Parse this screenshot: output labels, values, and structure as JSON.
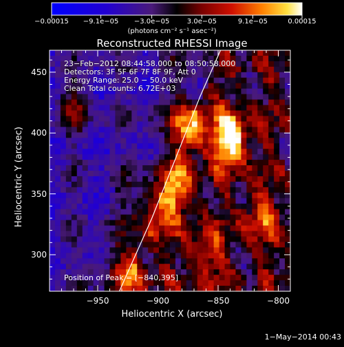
{
  "chart_data": {
    "type": "heatmap",
    "title": "Reconstructed RHESSI Image",
    "xlabel": "Heliocentric X (arcsec)",
    "ylabel": "Heliocentric Y (arcsec)",
    "xlim": [
      -990,
      -790
    ],
    "ylim": [
      270,
      468
    ],
    "xticks": [
      {
        "v": -950,
        "label": "−950"
      },
      {
        "v": -900,
        "label": "−900"
      },
      {
        "v": -850,
        "label": "−850"
      },
      {
        "v": -800,
        "label": "−800"
      }
    ],
    "yticks": [
      {
        "v": 300,
        "label": "300"
      },
      {
        "v": 350,
        "label": "350"
      },
      {
        "v": 400,
        "label": "400"
      },
      {
        "v": 450,
        "label": "450"
      }
    ],
    "colorbar": {
      "range": [
        -0.00015,
        0.00015
      ],
      "ticks": [
        {
          "v": -0.00015,
          "label": "−0.00015"
        },
        {
          "v": -9.1e-05,
          "label": "−9.1e−05"
        },
        {
          "v": -3e-05,
          "label": "−3.0e−05"
        },
        {
          "v": 3e-05,
          "label": "3.0e−05"
        },
        {
          "v": 9.1e-05,
          "label": "9.1e−05"
        },
        {
          "v": 0.00015,
          "label": "0.00015"
        }
      ],
      "units": "(photons cm⁻² s⁻¹ asec⁻²)"
    },
    "annotations": [
      "23−Feb−2012 08:44:58.000 to 08:50:58.000",
      "Detectors: 3F 5F 6F 7F 8F 9F, Att 0",
      "Energy Range: 25.0 − 50.0 keV",
      "Clean     Total counts: 6.72E+03"
    ],
    "peak_label": "Position of Peak = [−840,395]",
    "limb_curve": {
      "x": [
        -932,
        -905,
        -885,
        -865,
        -848
      ],
      "y": [
        270,
        330,
        380,
        430,
        468
      ]
    },
    "bright_sources": [
      {
        "x": -840,
        "y": 395,
        "peak": 1.0
      },
      {
        "x": -875,
        "y": 405,
        "peak": 0.8
      },
      {
        "x": -885,
        "y": 355,
        "peak": 0.6
      },
      {
        "x": -905,
        "y": 335,
        "peak": 0.5
      },
      {
        "x": -925,
        "y": 285,
        "peak": 0.55
      },
      {
        "x": -815,
        "y": 330,
        "peak": 0.45
      },
      {
        "x": -860,
        "y": 300,
        "peak": 0.4
      },
      {
        "x": -970,
        "y": 420,
        "peak": 0.35
      }
    ],
    "grid": false
  },
  "footer": {
    "timestamp": "1−May−2014 00:43"
  },
  "colors": {
    "background": "#000000",
    "text": "#ffffff"
  }
}
